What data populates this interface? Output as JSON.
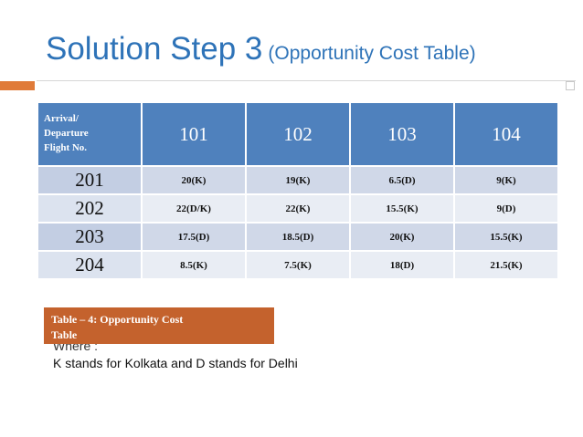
{
  "title": {
    "main": "Solution Step 3",
    "sub": "(Opportunity Cost Table)"
  },
  "table": {
    "corner_lines": [
      "Arrival/",
      "Departure",
      "Flight No."
    ],
    "columns": [
      "101",
      "102",
      "103",
      "104"
    ],
    "rows": [
      {
        "label": "201",
        "cells": [
          "20(K)",
          "19(K)",
          "6.5(D)",
          "9(K)"
        ]
      },
      {
        "label": "202",
        "cells": [
          "22(D/K)",
          "22(K)",
          "15.5(K)",
          "9(D)"
        ]
      },
      {
        "label": "203",
        "cells": [
          "17.5(D)",
          "18.5(D)",
          "20(K)",
          "15.5(K)"
        ]
      },
      {
        "label": "204",
        "cells": [
          "8.5(K)",
          "7.5(K)",
          "18(D)",
          "21.5(K)"
        ]
      }
    ]
  },
  "caption": {
    "line1": "Table – 4: Opportunity Cost",
    "line2": "Table"
  },
  "note": {
    "where": "Where :",
    "text": "K stands for Kolkata and D stands for Delhi"
  },
  "colors": {
    "title": "#2e73b8",
    "header": "#4f81bd",
    "accent": "#e07b39",
    "caption": "#c4622d"
  }
}
